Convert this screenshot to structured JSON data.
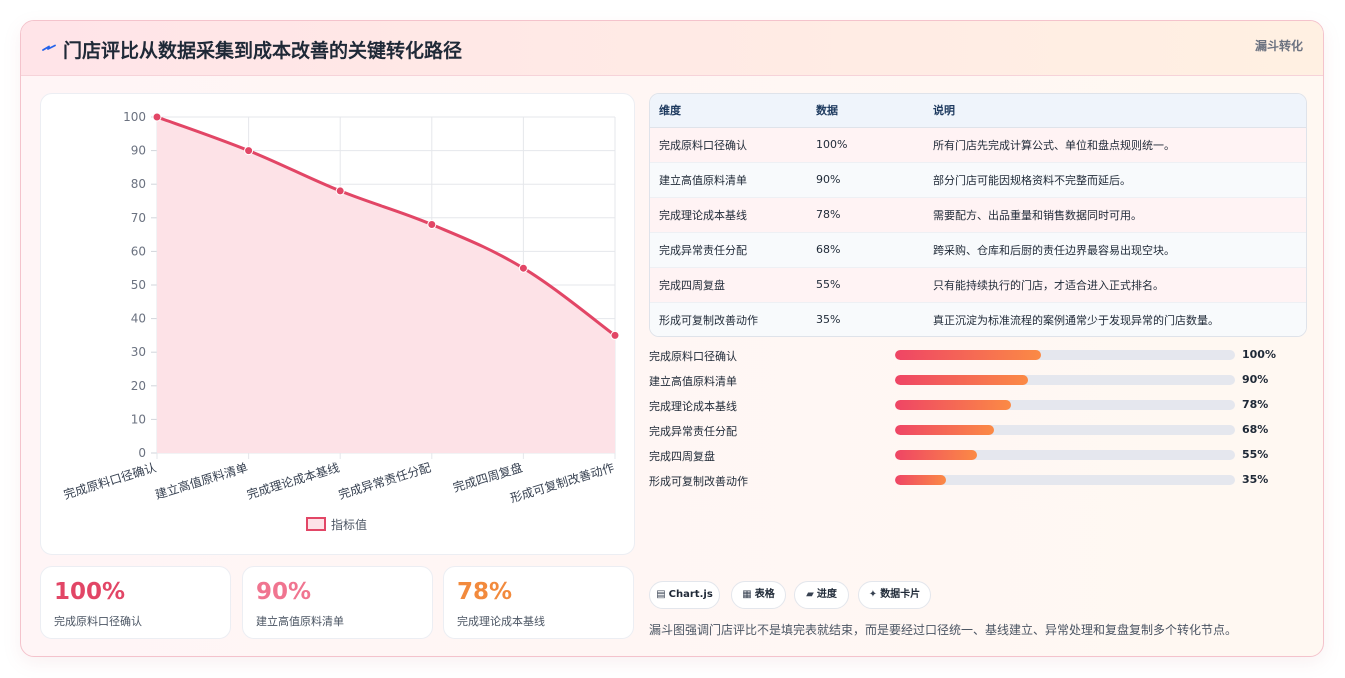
{
  "header": {
    "title": "门店评比从数据采集到成本改善的关键转化路径",
    "tag": "漏斗转化",
    "accent": "#2563eb"
  },
  "chart_data": {
    "type": "area",
    "categories": [
      "完成原料口径确认",
      "建立高值原料清单",
      "完成理论成本基线",
      "完成异常责任分配",
      "完成四周复盘",
      "形成可复制改善动作"
    ],
    "series": [
      {
        "name": "指标值",
        "values": [
          100,
          90,
          78,
          68,
          55,
          35
        ]
      }
    ],
    "yticks": [
      0,
      10,
      20,
      30,
      40,
      50,
      60,
      70,
      80,
      90,
      100
    ],
    "ylim": [
      0,
      100
    ],
    "grid": true,
    "legend": "bottom",
    "line_color": "#e24666",
    "fill_color": "#fde2e7"
  },
  "kpis": [
    {
      "value": "100%",
      "label": "完成原料口径确认",
      "color": "#e24666"
    },
    {
      "value": "90%",
      "label": "建立高值原料清单",
      "color": "#f07590"
    },
    {
      "value": "78%",
      "label": "完成理论成本基线",
      "color": "#f28a3d"
    }
  ],
  "table": {
    "headers": [
      "维度",
      "数据",
      "说明"
    ],
    "rows": [
      {
        "dim": "完成原料口径确认",
        "data": "100%",
        "desc": "所有门店先完成计算公式、单位和盘点规则统一。"
      },
      {
        "dim": "建立高值原料清单",
        "data": "90%",
        "desc": "部分门店可能因规格资料不完整而延后。"
      },
      {
        "dim": "完成理论成本基线",
        "data": "78%",
        "desc": "需要配方、出品重量和销售数据同时可用。"
      },
      {
        "dim": "完成异常责任分配",
        "data": "68%",
        "desc": "跨采购、仓库和后厨的责任边界最容易出现空块。"
      },
      {
        "dim": "完成四周复盘",
        "data": "55%",
        "desc": "只有能持续执行的门店，才适合进入正式排名。"
      },
      {
        "dim": "形成可复制改善动作",
        "data": "35%",
        "desc": "真正沉淀为标准流程的案例通常少于发现异常的门店数量。"
      }
    ]
  },
  "progress": [
    {
      "label": "完成原料口径确认",
      "value": "100%",
      "fill": 0.43
    },
    {
      "label": "建立高值原料清单",
      "value": "90%",
      "fill": 0.39
    },
    {
      "label": "完成理论成本基线",
      "value": "78%",
      "fill": 0.34
    },
    {
      "label": "完成异常责任分配",
      "value": "68%",
      "fill": 0.29
    },
    {
      "label": "完成四周复盘",
      "value": "55%",
      "fill": 0.24
    },
    {
      "label": "形成可复制改善动作",
      "value": "35%",
      "fill": 0.15
    }
  ],
  "pills": [
    {
      "icon": "chart-icon",
      "glyph": "▤",
      "label": "Chart.js"
    },
    {
      "icon": "table-icon",
      "glyph": "▦",
      "label": "表格"
    },
    {
      "icon": "progress-icon",
      "glyph": "▰",
      "label": "进度"
    },
    {
      "icon": "sparkle-icon",
      "glyph": "✦",
      "label": "数据卡片"
    }
  ],
  "note": "漏斗图强调门店评比不是填完表就结束，而是要经过口径统一、基线建立、异常处理和复盘复制多个转化节点。"
}
